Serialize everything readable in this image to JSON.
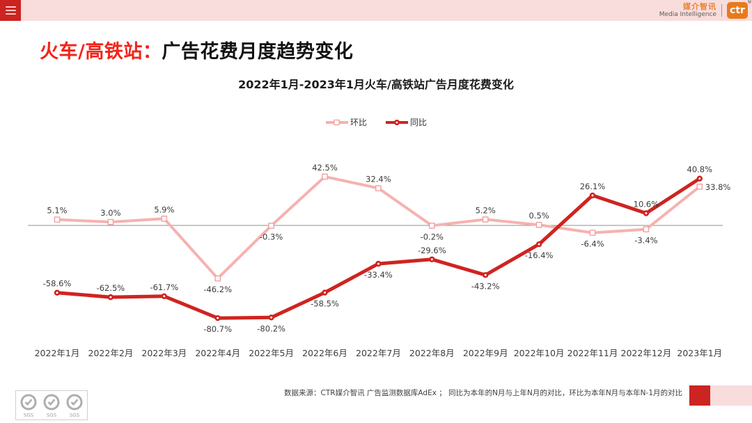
{
  "header": {
    "brand_cn": "媒介智讯",
    "brand_en": "Media Intelligence",
    "logo_text": "ctr",
    "reg_mark": "®"
  },
  "title": {
    "highlight": "火车/高铁站：",
    "rest": "广告花费月度趋势变化"
  },
  "chart_data": {
    "type": "line",
    "title": "2022年1月-2023年1月火车/高铁站广告月度花费变化",
    "categories": [
      "2022年1月",
      "2022年2月",
      "2022年3月",
      "2022年4月",
      "2022年5月",
      "2022年6月",
      "2022年7月",
      "2022年8月",
      "2022年9月",
      "2022年10月",
      "2022年11月",
      "2022年12月",
      "2023年1月"
    ],
    "series": [
      {
        "name": "环比",
        "color": "#f6b2af",
        "marker": "square",
        "values": [
          5.1,
          3.0,
          5.9,
          -46.2,
          -0.3,
          42.5,
          32.4,
          -0.2,
          5.2,
          0.5,
          -6.4,
          -3.4,
          33.8
        ],
        "label_positions": [
          "above",
          "above",
          "above",
          "below",
          "below",
          "above",
          "above",
          "below",
          "above",
          "above",
          "below",
          "below",
          "right"
        ]
      },
      {
        "name": "同比",
        "color": "#cf2420",
        "marker": "circle",
        "values": [
          -58.6,
          -62.5,
          -61.7,
          -80.7,
          -80.2,
          -58.5,
          -33.4,
          -29.6,
          -43.2,
          -16.4,
          26.1,
          10.6,
          40.8
        ],
        "label_positions": [
          "above",
          "above",
          "above",
          "below",
          "below",
          "below",
          "below",
          "above",
          "below",
          "below",
          "above",
          "above",
          "above"
        ]
      }
    ],
    "value_suffix": "%",
    "baseline": 0,
    "ylim": [
      -95,
      55
    ],
    "grid": false,
    "legend_position": "top-center"
  },
  "footer": {
    "source_text": "数据来源：CTR媒介智讯 广告监测数据库AdEx ； 同比为本年的N月与上年N月的对比，环比为本年N月与本年N-1月的对比",
    "sgs_label": "SGS"
  },
  "colors": {
    "accent_red": "#cc2420",
    "title_red": "#f3241a",
    "light_pink": "#f9dcdc",
    "series_pink": "#f6b2af",
    "series_red": "#cf2420",
    "logo_orange": "#e87a1e",
    "zero_line": "#8f8f8f"
  }
}
